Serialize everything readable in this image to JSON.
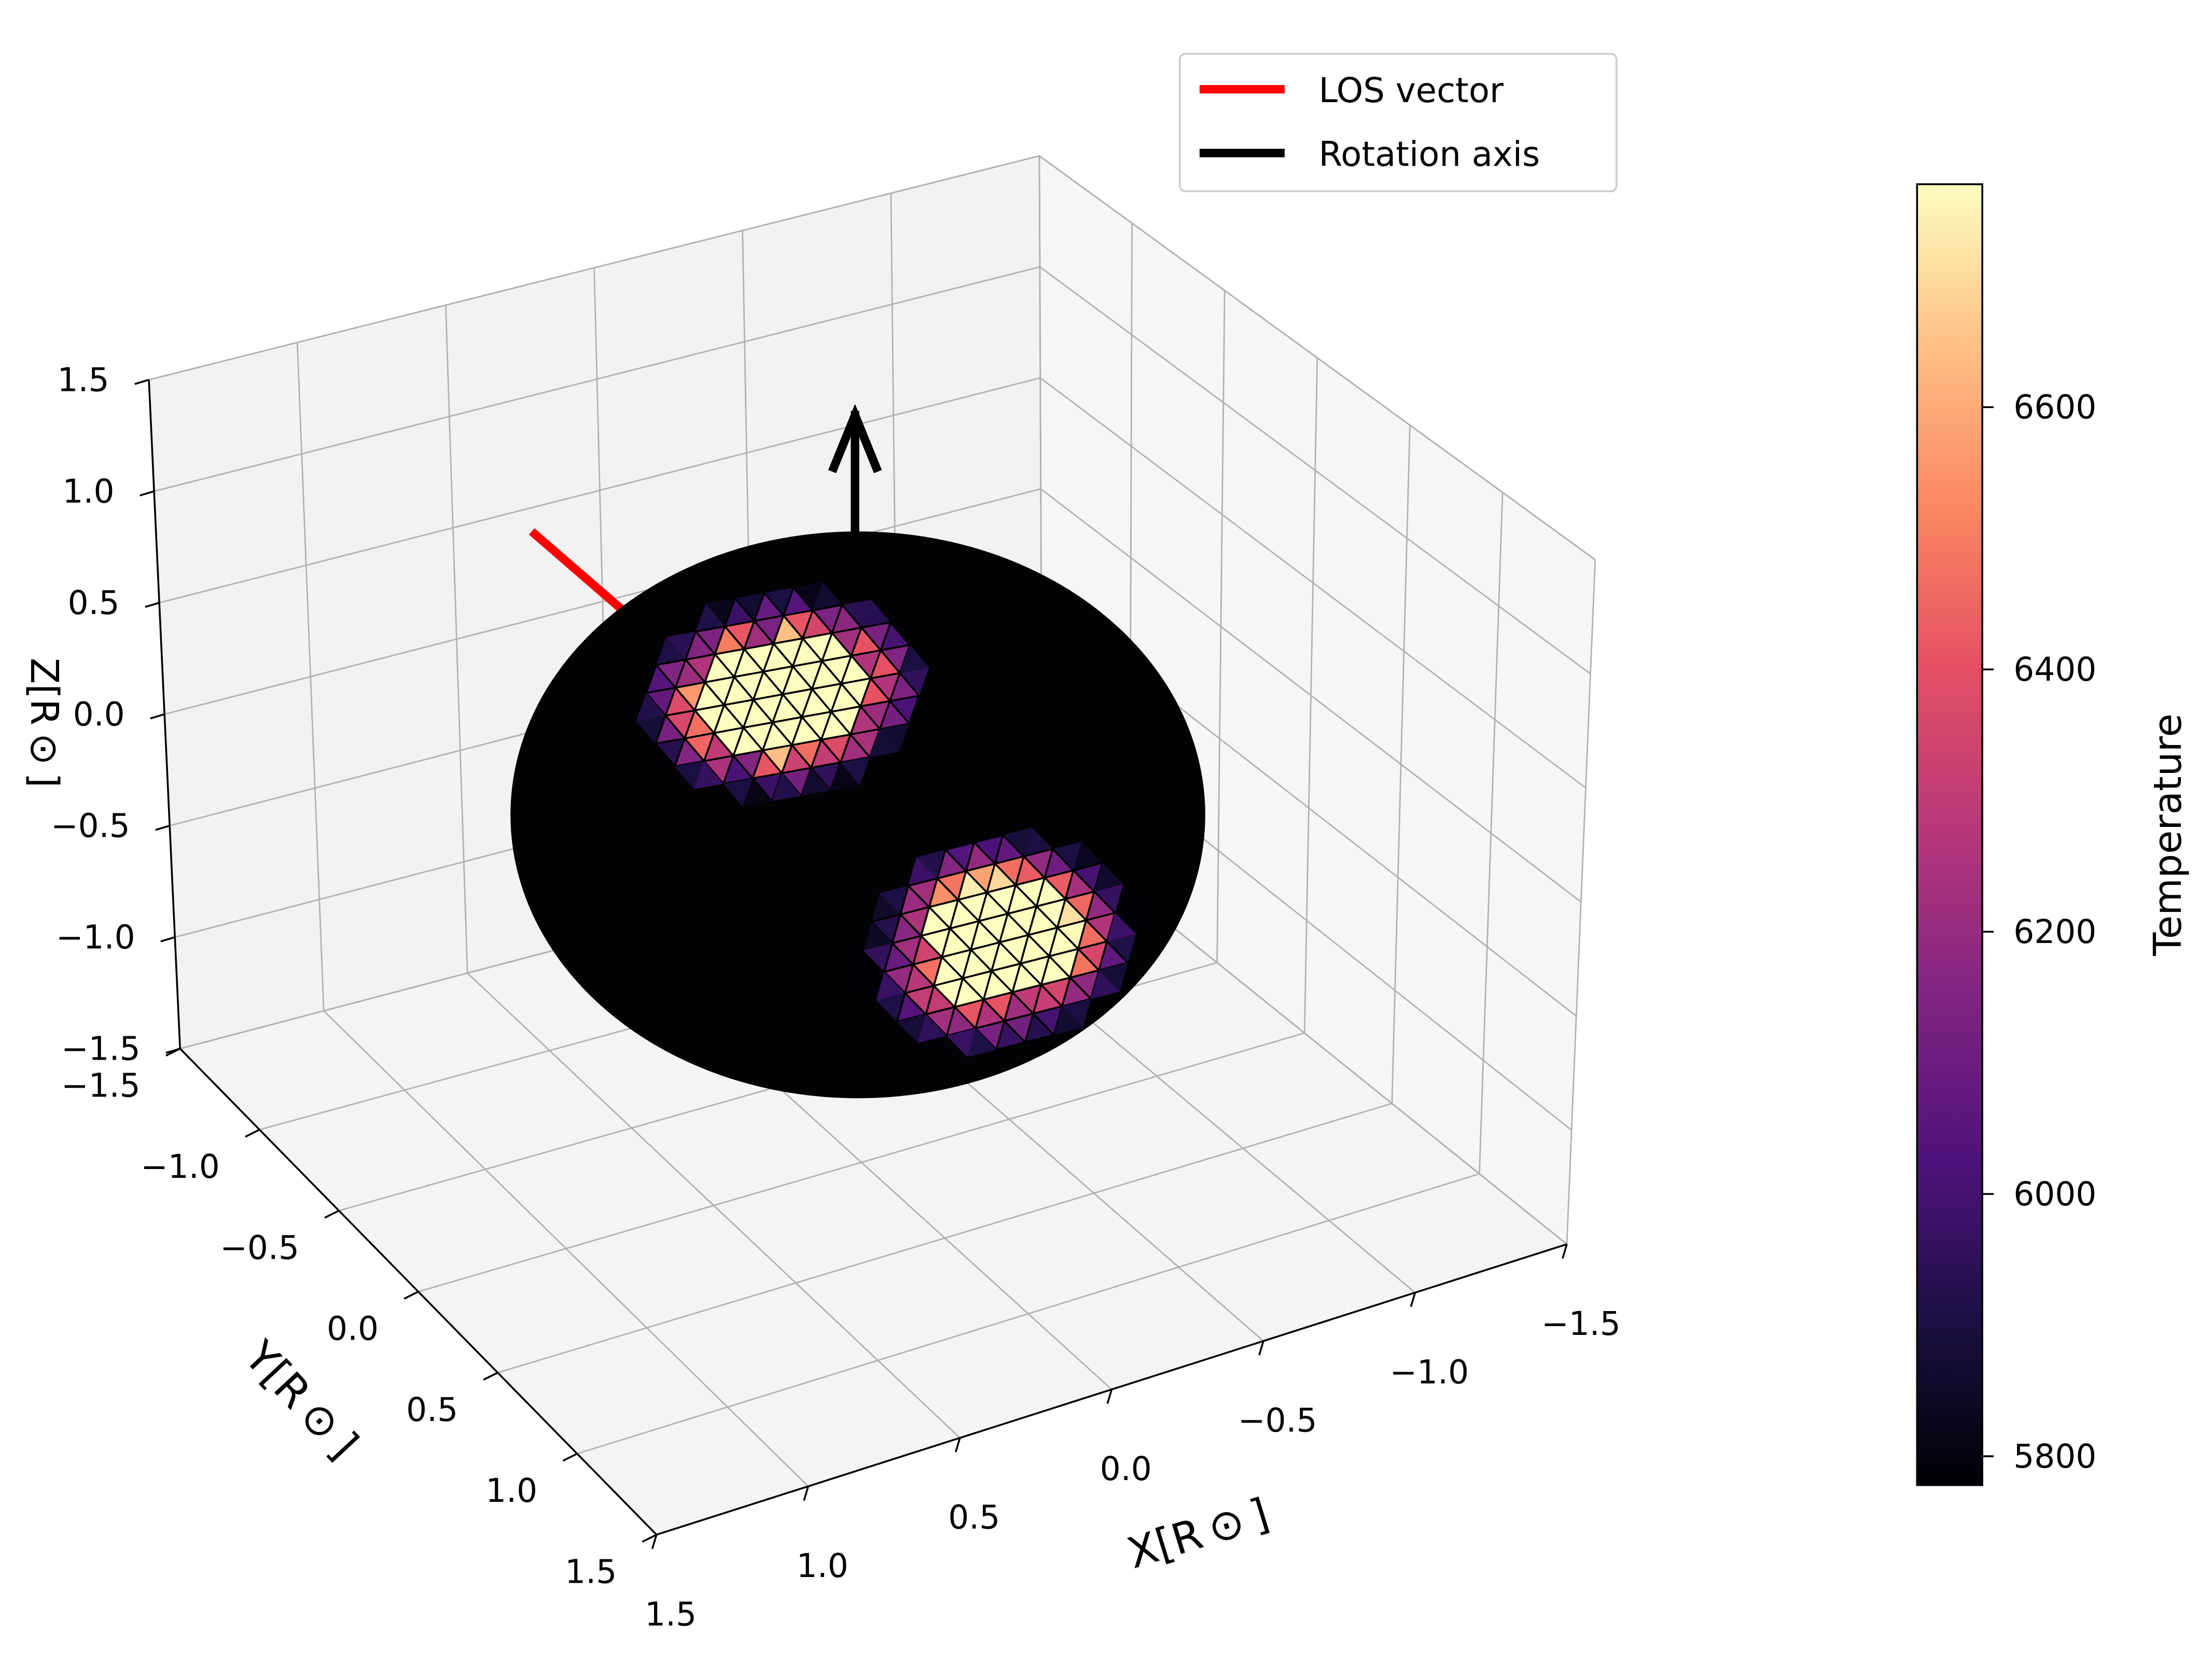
{
  "chart_data": {
    "type": "3d-surface",
    "axes": {
      "x": {
        "label": "X[R$_\\odot$]",
        "label_display": "X[R ⊙ ]",
        "ticks": [
          -1.5,
          -1.0,
          -0.5,
          0.0,
          0.5,
          1.0,
          1.5
        ],
        "tick_labels": [
          "−1.5",
          "−1.0",
          "−0.5",
          "0.0",
          "0.5",
          "1.0",
          "1.5"
        ],
        "lim": [
          -1.5,
          1.5
        ]
      },
      "y": {
        "label_display": "Y[R ⊙ ]",
        "ticks": [
          -1.5,
          -1.0,
          -0.5,
          0.0,
          0.5,
          1.0,
          1.5
        ],
        "tick_labels": [
          "−1.5",
          "−1.0",
          "−0.5",
          "0.0",
          "0.5",
          "1.0",
          "1.5"
        ],
        "lim": [
          -1.5,
          1.5
        ]
      },
      "z": {
        "label_display": "Z[R ⊙ ]",
        "ticks": [
          -1.5,
          -1.0,
          -0.5,
          0.0,
          0.5,
          1.0,
          1.5
        ],
        "tick_labels": [
          "−1.5",
          "−1.0",
          "−0.5",
          "0.0",
          "0.5",
          "1.0",
          "1.5"
        ],
        "lim": [
          -1.5,
          1.5
        ]
      }
    },
    "grid": true,
    "legend": {
      "placement": "top-center",
      "entries": [
        {
          "label": "LOS vector",
          "color": "#ff0000"
        },
        {
          "label": "Rotation axis",
          "color": "#000000"
        }
      ]
    },
    "sphere": {
      "radius": 1.0,
      "base_temperature": 5778
    },
    "spots": [
      {
        "center_xyz": [
          -0.2,
          -0.6,
          0.6
        ],
        "peak_temperature": 6770
      },
      {
        "center_xyz": [
          -0.1,
          0.75,
          -0.35
        ],
        "peak_temperature": 6770
      }
    ],
    "vectors": [
      {
        "name": "LOS vector",
        "color": "#ff0000"
      },
      {
        "name": "Rotation axis",
        "color": "#000000"
      }
    ],
    "colorbar": {
      "label": "Temperature",
      "colormap": "magma",
      "range": [
        5778,
        6770
      ],
      "ticks": [
        5800,
        6000,
        6200,
        6400,
        6600
      ],
      "tick_labels": [
        "5800",
        "6000",
        "6200",
        "6400",
        "6600"
      ]
    }
  },
  "colors": {
    "pane_left": "#f2f2f2",
    "pane_back": "#ebebeb",
    "pane_floor": "#f4f4f4",
    "grid": "#b0b0b0",
    "sphere": "#030306",
    "los": "#ff0000",
    "axis_arrow": "#000000"
  }
}
